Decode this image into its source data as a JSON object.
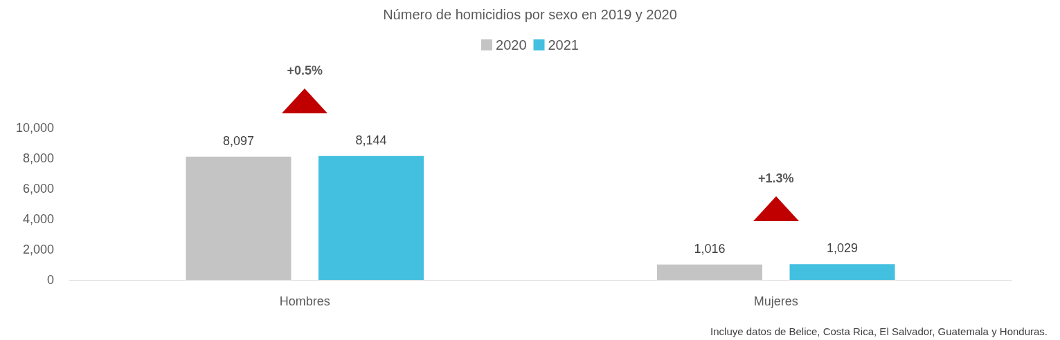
{
  "chart_data": {
    "type": "bar",
    "title": "Número de homicidios por sexo en 2019 y 2020",
    "categories": [
      "Hombres",
      "Mujeres"
    ],
    "series": [
      {
        "name": "2020",
        "color": "#c4c4c4",
        "values": [
          8097,
          1016
        ],
        "value_labels": [
          "8,097",
          "1,016"
        ]
      },
      {
        "name": "2021",
        "color": "#43bfe0",
        "values": [
          8144,
          1029
        ],
        "value_labels": [
          "8,144",
          "1,029"
        ]
      }
    ],
    "ylim": [
      0,
      10000
    ],
    "yticks": [
      {
        "value": 0,
        "label": "0"
      },
      {
        "value": 2000,
        "label": "2,000"
      },
      {
        "value": 4000,
        "label": "4,000"
      },
      {
        "value": 6000,
        "label": "6,000"
      },
      {
        "value": 8000,
        "label": "8,000"
      },
      {
        "value": 10000,
        "label": "10,000"
      }
    ],
    "grid": false,
    "legend": "top",
    "annotations": [
      "+0.5%",
      "+1.3%",
      "Incluye datos de Belice, Costa Rica, El Salvador, Guatemala y Honduras."
    ]
  }
}
